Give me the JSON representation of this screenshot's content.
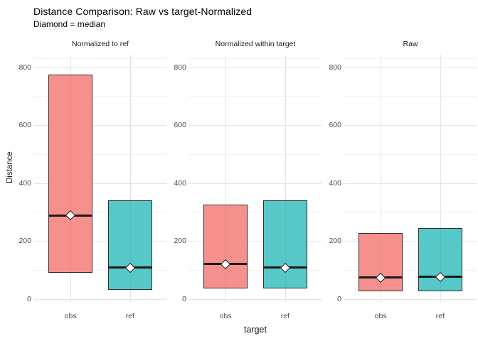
{
  "chart_data": {
    "type": "boxplot",
    "title": "Distance Comparison: Raw vs target-Normalized",
    "subtitle": "Diamond = median",
    "xlabel": "target",
    "ylabel": "Distance",
    "ylim": [
      0,
      800
    ],
    "yticks": [
      0,
      200,
      400,
      600,
      800
    ],
    "yticks_minor": [
      100,
      300,
      500,
      700
    ],
    "categories": [
      "obs",
      "ref"
    ],
    "marker_note": "white diamond marks the median of each box",
    "grid": "major and minor horizontal gridlines, vertical gridline at each category",
    "legend_position": "none",
    "colors": {
      "obs_fill": "#F6908C",
      "ref_fill": "#57C8C8",
      "box_border": "#2E2E2E",
      "median": "#1A1A1A",
      "grid_major": "#E4E4E4",
      "grid_minor": "#F1F1F1"
    },
    "facets": [
      {
        "label": "Normalized to ref",
        "boxes": [
          {
            "group": "obs",
            "q1": 90,
            "median": 290,
            "q3": 775
          },
          {
            "group": "ref",
            "q1": 30,
            "median": 110,
            "q3": 340
          }
        ]
      },
      {
        "label": "Normalized within target",
        "boxes": [
          {
            "group": "obs",
            "q1": 35,
            "median": 122,
            "q3": 325
          },
          {
            "group": "ref",
            "q1": 35,
            "median": 110,
            "q3": 340
          }
        ]
      },
      {
        "label": "Raw",
        "boxes": [
          {
            "group": "obs",
            "q1": 25,
            "median": 76,
            "q3": 226
          },
          {
            "group": "ref",
            "q1": 25,
            "median": 78,
            "q3": 244
          }
        ]
      }
    ]
  }
}
